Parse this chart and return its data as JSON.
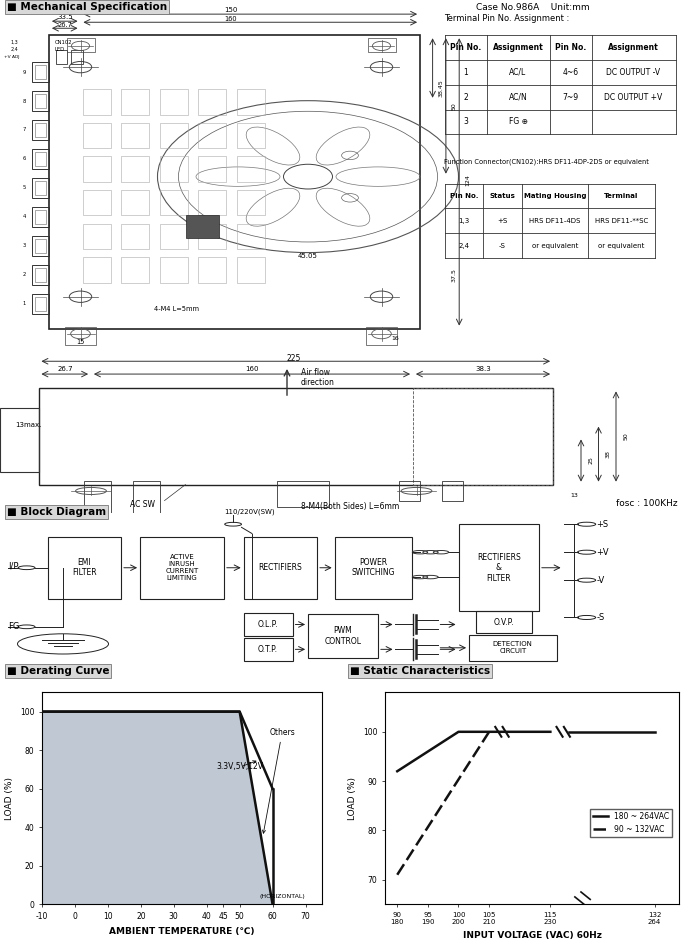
{
  "title": "Mechanical Specification",
  "case_no": "Case No.986A    Unit:mm",
  "terminal_headers": [
    "Pin No.",
    "Assignment",
    "Pin No.",
    "Assignment"
  ],
  "terminal_rows": [
    [
      "1",
      "AC/L",
      "4~6",
      "DC OUTPUT -V"
    ],
    [
      "2",
      "AC/N",
      "7~9",
      "DC OUTPUT +V"
    ],
    [
      "3",
      "FG ⊕",
      "",
      ""
    ]
  ],
  "function_title": "Function Connector(CN102):HRS DF11-4DP-2DS or equivalent",
  "function_headers": [
    "Pin No.",
    "Status",
    "Mating Housing",
    "Terminal"
  ],
  "function_rows": [
    [
      "1,3",
      "+S",
      "HRS DF11-4DS",
      "HRS DF11-**SC"
    ],
    [
      "2,4",
      "-S",
      "or equivalent",
      "or equivalent"
    ]
  ],
  "derating_fill": "#c0c8d4",
  "legend_solid": "180 ~ 264VAC",
  "legend_dashed": "90 ~ 132VAC"
}
